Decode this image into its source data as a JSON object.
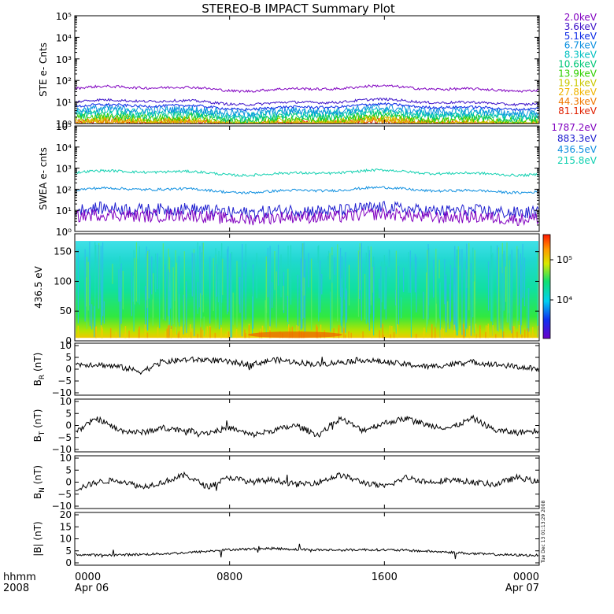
{
  "title": "STEREO-B IMPACT Summary Plot",
  "chart_data": [
    {
      "type": "line",
      "panel": "ste",
      "ylabel": "STE e- Cnts",
      "yscale": "log",
      "ylim": [
        1,
        100000
      ],
      "yticks": [
        "10⁰",
        "10¹",
        "10²",
        "10³",
        "10⁴",
        "10⁵"
      ],
      "series": [
        {
          "name": "2.0keV",
          "color": "#8000c0",
          "level": 42
        },
        {
          "name": "3.6keV",
          "color": "#3c10c8",
          "level": 10
        },
        {
          "name": "5.1keV",
          "color": "#0a28e6",
          "level": 6
        },
        {
          "name": "6.7keV",
          "color": "#0a90e0",
          "level": 4
        },
        {
          "name": "8.3keV",
          "color": "#00c0c0",
          "level": 3
        },
        {
          "name": "10.6keV",
          "color": "#00c878",
          "level": 2.2
        },
        {
          "name": "13.9keV",
          "color": "#30d000",
          "level": 1.7
        },
        {
          "name": "19.1keV",
          "color": "#c8c800",
          "level": 1.3
        },
        {
          "name": "27.8keV",
          "color": "#f0b400",
          "level": 1.1
        },
        {
          "name": "44.3keV",
          "color": "#f07800",
          "level": 1.0
        },
        {
          "name": "81.1keV",
          "color": "#e02000",
          "level": 1.0
        }
      ]
    },
    {
      "type": "line",
      "panel": "swea",
      "ylabel": "SWEA e- cnts",
      "yscale": "log",
      "ylim": [
        1,
        100000
      ],
      "yticks": [
        "10⁰",
        "10¹",
        "10²",
        "10³",
        "10⁴",
        "10⁵"
      ],
      "series": [
        {
          "name": "1787.2eV",
          "color": "#8000c0",
          "level": 5
        },
        {
          "name": "883.3eV",
          "color": "#2020d0",
          "level": 10
        },
        {
          "name": "436.5eV",
          "color": "#1090e0",
          "level": 90
        },
        {
          "name": "215.8eV",
          "color": "#10d0b0",
          "level": 600
        }
      ]
    },
    {
      "type": "heatmap",
      "panel": "pad",
      "ylabel": "436.5 eV",
      "ylim": [
        0,
        180
      ],
      "yticks": [
        "0",
        "50",
        "100",
        "150"
      ],
      "colorbar_ticks": [
        "10⁵",
        "10⁴"
      ]
    },
    {
      "type": "line",
      "panel": "br",
      "ylabel": "B_R (nT)",
      "ylabel_main": "B",
      "ylabel_sub": "R",
      "ylabel_unit": "(nT)",
      "ylim": [
        -10,
        10
      ],
      "yticks": [
        "−10",
        "−5",
        "0",
        "5",
        "10"
      ],
      "color": "#000000"
    },
    {
      "type": "line",
      "panel": "bt",
      "ylabel": "B_T (nT)",
      "ylabel_main": "B",
      "ylabel_sub": "T",
      "ylabel_unit": "(nT)",
      "ylim": [
        -10,
        10
      ],
      "yticks": [
        "−10",
        "−5",
        "0",
        "5",
        "10"
      ],
      "color": "#000000"
    },
    {
      "type": "line",
      "panel": "bn",
      "ylabel": "B_N (nT)",
      "ylabel_main": "B",
      "ylabel_sub": "N",
      "ylabel_unit": "(nT)",
      "ylim": [
        -10,
        10
      ],
      "yticks": [
        "−10",
        "−5",
        "0",
        "5",
        "10"
      ],
      "color": "#000000"
    },
    {
      "type": "line",
      "panel": "bmag",
      "ylabel": "|B| (nT)",
      "ylabel_main": "|B|",
      "ylabel_sub": "",
      "ylabel_unit": "(nT)",
      "ylim": [
        0,
        20
      ],
      "yticks": [
        "0",
        "5",
        "10",
        "15",
        "20"
      ],
      "color": "#000000"
    }
  ],
  "xaxis": {
    "ticks": [
      "0000",
      "0800",
      "1600",
      "0000"
    ],
    "dates": [
      "Apr 06",
      "",
      "",
      "Apr 07"
    ],
    "row1_label": "hhmm",
    "row2_label": "2008"
  },
  "timestamp": "Tue Dec 13 01:13:29 2008"
}
